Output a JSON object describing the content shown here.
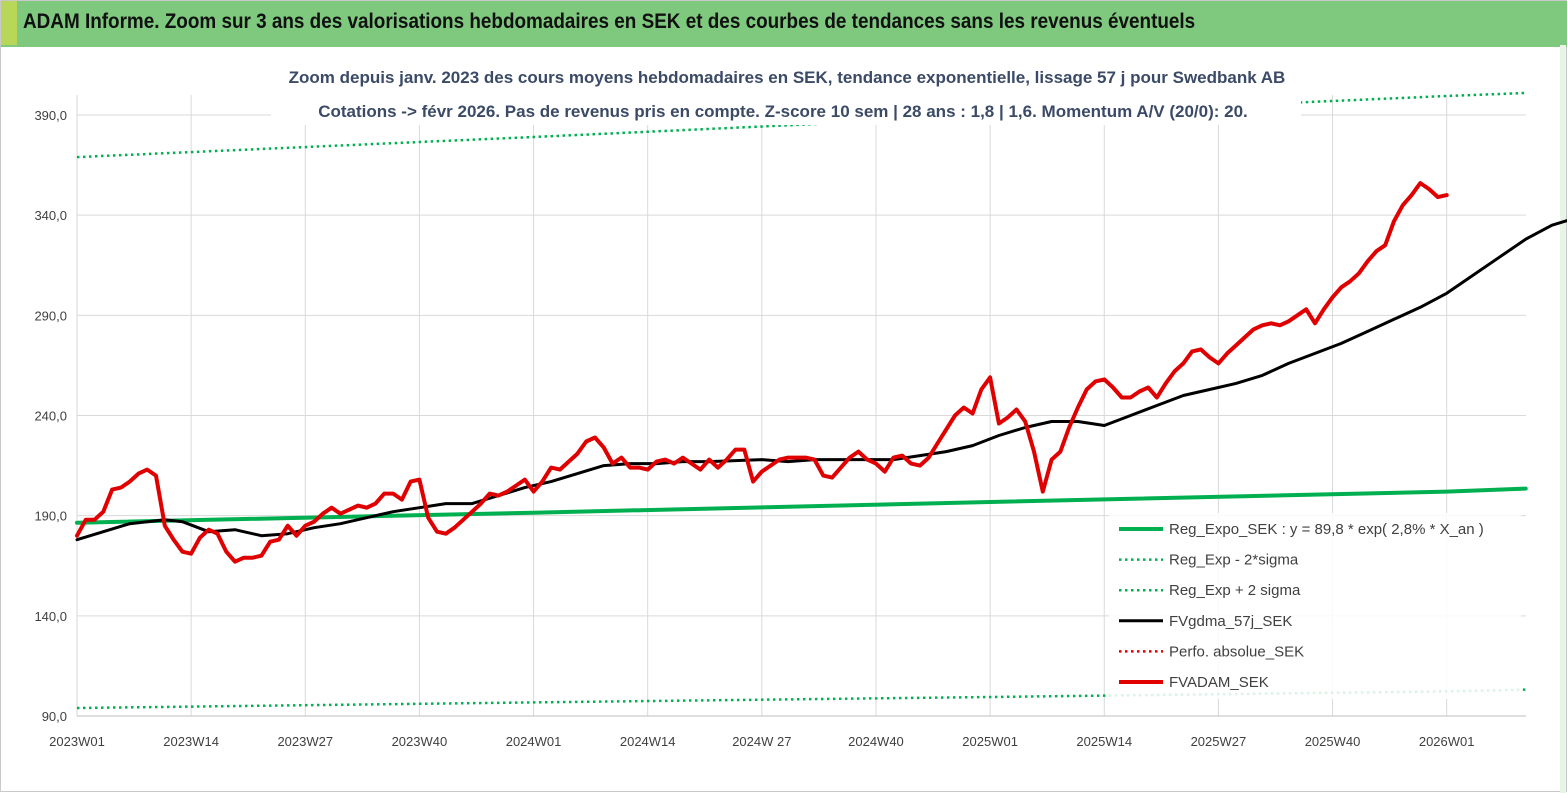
{
  "header": {
    "title": "ADAM Informe. Zoom sur 3 ans des valorisations hebdomadaires en SEK et des courbes de tendances sans les revenus éventuels"
  },
  "colors": {
    "banner": "#7fc97f",
    "regression": "#00b050",
    "sigma_bands": "#00b050",
    "moving_average": "#000000",
    "price": "#e00000",
    "grid": "#d9d9d9"
  },
  "chart_data": {
    "type": "line",
    "title_line1": "Zoom depuis janv. 2023 des cours moyens hebdomadaires en SEK, tendance exponentielle, lissage 57 j pour Swedbank AB",
    "title_line2": "Cotations -> févr 2026.  Pas de revenus pris en compte. Z-score 10 sem  | 28 ans : 1,8  | 1,6. Momentum A/V (20/0): 20.",
    "ylim": [
      90,
      390
    ],
    "y_ticks": [
      "90,0",
      "140,0",
      "190,0",
      "240,0",
      "290,0",
      "340,0",
      "390,0"
    ],
    "x_tick_labels": [
      "2023W01",
      "2023W14",
      "2023W27",
      "2023W40",
      "2024W01",
      "2024W14",
      "2024W 27",
      "2024W40",
      "2025W01",
      "2025W14",
      "2025W27",
      "2025W40",
      "2026W01"
    ],
    "grid": true,
    "legend_position": "bottom-right",
    "series": [
      {
        "name": "Reg_Expo_SEK : y = 89,8 * exp( 2,8% *  X_an )",
        "style": "solid-thick",
        "color": "#00b050",
        "points": [
          [
            0,
            186.5
          ],
          [
            52,
            191.5
          ],
          [
            104,
            196.8
          ],
          [
            156,
            202
          ],
          [
            165,
            203.5
          ]
        ]
      },
      {
        "name": "Reg_Exp - 2*sigma",
        "style": "dotted",
        "color": "#00b050",
        "points": [
          [
            0,
            94
          ],
          [
            52,
            96.8
          ],
          [
            104,
            99.5
          ],
          [
            156,
            102.3
          ],
          [
            165,
            103.2
          ]
        ]
      },
      {
        "name": "Reg_Exp + 2 sigma",
        "style": "dotted",
        "color": "#00b050",
        "points": [
          [
            0,
            369
          ],
          [
            52,
            379
          ],
          [
            104,
            389.5
          ],
          [
            156,
            399.5
          ],
          [
            165,
            401
          ]
        ]
      },
      {
        "name": "FVgdma_57j_SEK",
        "style": "solid",
        "color": "#000000",
        "points": [
          [
            0,
            178
          ],
          [
            3,
            182
          ],
          [
            6,
            186
          ],
          [
            10,
            188
          ],
          [
            12,
            187
          ],
          [
            15,
            182
          ],
          [
            18,
            183
          ],
          [
            21,
            180
          ],
          [
            24,
            181
          ],
          [
            27,
            184
          ],
          [
            30,
            186
          ],
          [
            33,
            189
          ],
          [
            36,
            192
          ],
          [
            39,
            194
          ],
          [
            42,
            196
          ],
          [
            45,
            196
          ],
          [
            48,
            200
          ],
          [
            51,
            204
          ],
          [
            54,
            207
          ],
          [
            57,
            211
          ],
          [
            60,
            215
          ],
          [
            63,
            216
          ],
          [
            66,
            216
          ],
          [
            69,
            217
          ],
          [
            72,
            217
          ],
          [
            75,
            217.5
          ],
          [
            78,
            218
          ],
          [
            81,
            217
          ],
          [
            84,
            218
          ],
          [
            87,
            218
          ],
          [
            90,
            218
          ],
          [
            93,
            218
          ],
          [
            96,
            220
          ],
          [
            99,
            222
          ],
          [
            102,
            225
          ],
          [
            105,
            230
          ],
          [
            108,
            234
          ],
          [
            111,
            237
          ],
          [
            114,
            237
          ],
          [
            117,
            235
          ],
          [
            120,
            240
          ],
          [
            123,
            245
          ],
          [
            126,
            250
          ],
          [
            129,
            253
          ],
          [
            132,
            256
          ],
          [
            135,
            260
          ],
          [
            138,
            266
          ],
          [
            141,
            271
          ],
          [
            144,
            276
          ],
          [
            147,
            282
          ],
          [
            150,
            288
          ],
          [
            153,
            294
          ],
          [
            156,
            301
          ],
          [
            159,
            310
          ],
          [
            162,
            319
          ],
          [
            165,
            328
          ],
          [
            168,
            335
          ],
          [
            171,
            339
          ]
        ]
      },
      {
        "name": "Perfo. absolue_SEK",
        "style": "dotted",
        "color": "#e00000",
        "points": []
      },
      {
        "name": "FVADAM_SEK",
        "style": "solid-thick",
        "color": "#e00000",
        "points": [
          [
            0,
            180
          ],
          [
            1,
            188
          ],
          [
            2,
            188
          ],
          [
            3,
            192
          ],
          [
            4,
            203
          ],
          [
            5,
            204
          ],
          [
            6,
            207
          ],
          [
            7,
            211
          ],
          [
            8,
            213
          ],
          [
            9,
            210
          ],
          [
            10,
            185
          ],
          [
            11,
            178
          ],
          [
            12,
            172
          ],
          [
            13,
            171
          ],
          [
            14,
            179
          ],
          [
            15,
            183
          ],
          [
            16,
            181
          ],
          [
            17,
            172
          ],
          [
            18,
            167
          ],
          [
            19,
            169
          ],
          [
            20,
            169
          ],
          [
            21,
            170
          ],
          [
            22,
            177
          ],
          [
            23,
            178
          ],
          [
            24,
            185
          ],
          [
            25,
            180
          ],
          [
            26,
            185
          ],
          [
            27,
            187
          ],
          [
            28,
            191
          ],
          [
            29,
            194
          ],
          [
            30,
            191
          ],
          [
            31,
            193
          ],
          [
            32,
            195
          ],
          [
            33,
            194
          ],
          [
            34,
            196
          ],
          [
            35,
            201
          ],
          [
            36,
            201
          ],
          [
            37,
            198
          ],
          [
            38,
            207
          ],
          [
            39,
            208
          ],
          [
            40,
            189
          ],
          [
            41,
            182
          ],
          [
            42,
            181
          ],
          [
            43,
            184
          ],
          [
            44,
            188
          ],
          [
            45,
            192
          ],
          [
            46,
            196
          ],
          [
            47,
            201
          ],
          [
            48,
            200
          ],
          [
            49,
            202
          ],
          [
            50,
            205
          ],
          [
            51,
            208
          ],
          [
            52,
            202
          ],
          [
            53,
            207
          ],
          [
            54,
            214
          ],
          [
            55,
            213
          ],
          [
            56,
            217
          ],
          [
            57,
            221
          ],
          [
            58,
            227
          ],
          [
            59,
            229
          ],
          [
            60,
            224
          ],
          [
            61,
            216
          ],
          [
            62,
            219
          ],
          [
            63,
            214
          ],
          [
            64,
            214
          ],
          [
            65,
            213
          ],
          [
            66,
            217
          ],
          [
            67,
            218
          ],
          [
            68,
            216
          ],
          [
            69,
            219
          ],
          [
            70,
            216
          ],
          [
            71,
            213
          ],
          [
            72,
            218
          ],
          [
            73,
            214
          ],
          [
            74,
            218
          ],
          [
            75,
            223
          ],
          [
            76,
            223
          ],
          [
            77,
            207
          ],
          [
            78,
            212
          ],
          [
            79,
            215
          ],
          [
            80,
            218
          ],
          [
            81,
            219
          ],
          [
            82,
            219
          ],
          [
            83,
            219
          ],
          [
            84,
            218
          ],
          [
            85,
            210
          ],
          [
            86,
            209
          ],
          [
            87,
            214
          ],
          [
            88,
            219
          ],
          [
            89,
            222
          ],
          [
            90,
            218
          ],
          [
            91,
            216
          ],
          [
            92,
            212
          ],
          [
            93,
            219
          ],
          [
            94,
            220
          ],
          [
            95,
            216
          ],
          [
            96,
            215
          ],
          [
            97,
            219
          ],
          [
            98,
            226
          ],
          [
            99,
            233
          ],
          [
            100,
            240
          ],
          [
            101,
            244
          ],
          [
            102,
            241
          ],
          [
            103,
            253
          ],
          [
            104,
            259
          ],
          [
            105,
            236
          ],
          [
            106,
            239
          ],
          [
            107,
            243
          ],
          [
            108,
            237
          ],
          [
            109,
            222
          ],
          [
            110,
            202
          ],
          [
            111,
            218
          ],
          [
            112,
            222
          ],
          [
            113,
            234
          ],
          [
            114,
            244
          ],
          [
            115,
            253
          ],
          [
            116,
            257
          ],
          [
            117,
            258
          ],
          [
            118,
            254
          ],
          [
            119,
            249
          ],
          [
            120,
            249
          ],
          [
            121,
            252
          ],
          [
            122,
            254
          ],
          [
            123,
            249
          ],
          [
            124,
            256
          ],
          [
            125,
            262
          ],
          [
            126,
            266
          ],
          [
            127,
            272
          ],
          [
            128,
            273
          ],
          [
            129,
            269
          ],
          [
            130,
            266
          ],
          [
            131,
            271
          ],
          [
            132,
            275
          ],
          [
            133,
            279
          ],
          [
            134,
            283
          ],
          [
            135,
            285
          ],
          [
            136,
            286
          ],
          [
            137,
            285
          ],
          [
            138,
            287
          ],
          [
            139,
            290
          ],
          [
            140,
            293
          ],
          [
            141,
            286
          ],
          [
            142,
            293
          ],
          [
            143,
            299
          ],
          [
            144,
            304
          ],
          [
            145,
            307
          ],
          [
            146,
            311
          ],
          [
            147,
            317
          ],
          [
            148,
            322
          ],
          [
            149,
            325
          ],
          [
            150,
            337
          ],
          [
            151,
            345
          ],
          [
            152,
            350
          ],
          [
            153,
            356
          ],
          [
            154,
            353
          ],
          [
            155,
            349
          ],
          [
            156,
            350
          ]
        ]
      }
    ]
  }
}
